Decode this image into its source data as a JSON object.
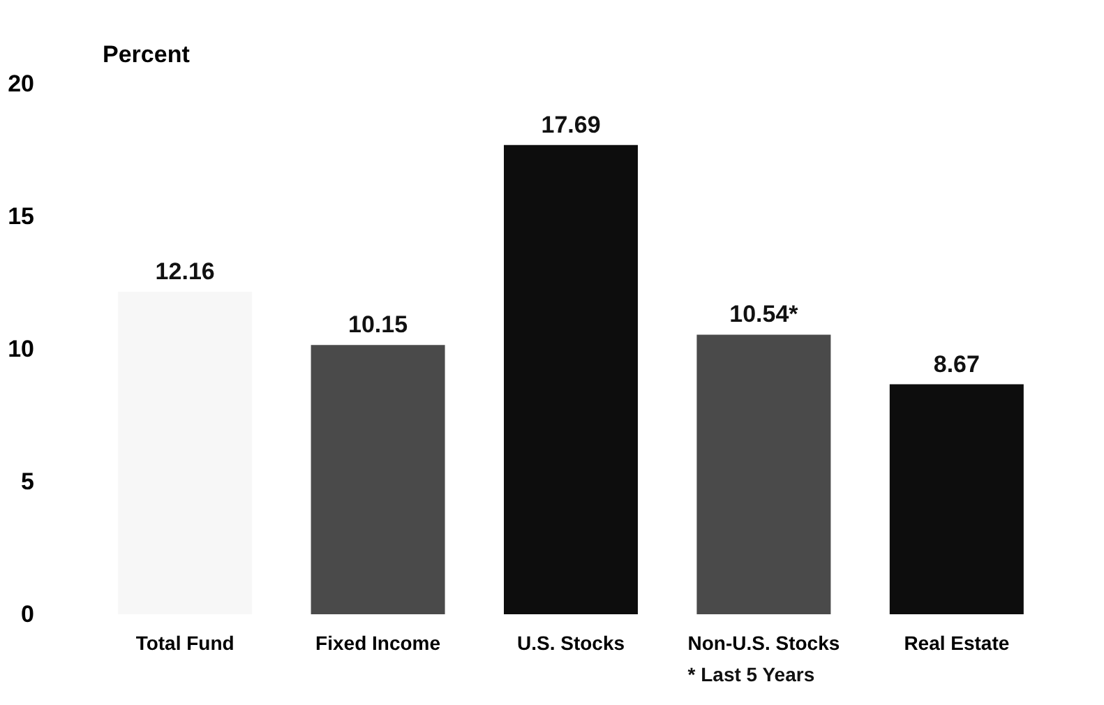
{
  "chart_data": {
    "type": "bar",
    "ylabel": "Percent",
    "categories": [
      "Total Fund",
      "Fixed Income",
      "U.S. Stocks",
      "Non-U.S. Stocks",
      "Real Estate"
    ],
    "values": [
      12.16,
      10.15,
      17.69,
      10.54,
      8.67
    ],
    "value_labels": [
      "12.16",
      "10.15",
      "17.69",
      "10.54*",
      "8.67"
    ],
    "colors": [
      "#f7f7f7",
      "#4a4a4a",
      "#0d0d0d",
      "#4a4a4a",
      "#0d0d0d"
    ],
    "ylim": [
      0,
      20
    ],
    "yticks": [
      0,
      5,
      10,
      15,
      20
    ],
    "grid": false,
    "annotations": [
      "* Last 5 Years"
    ]
  }
}
